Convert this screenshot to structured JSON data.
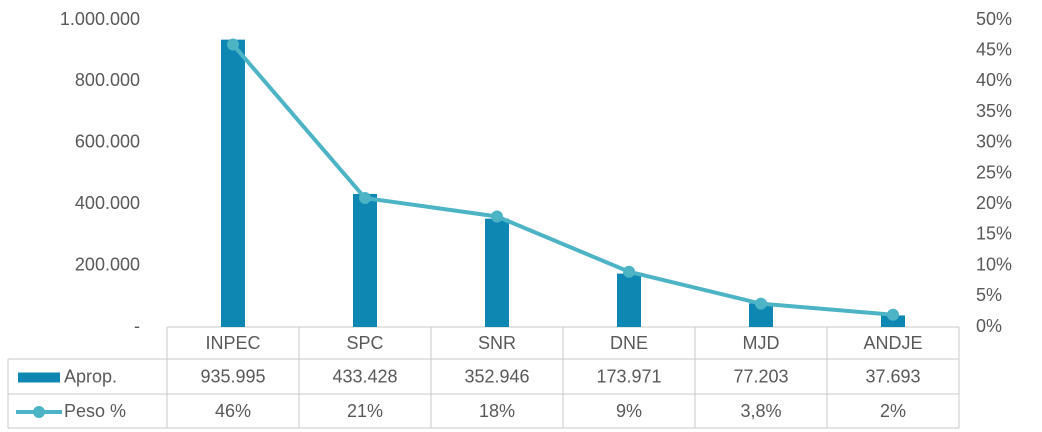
{
  "chart_data": {
    "type": "combo",
    "categories": [
      "INPEC",
      "SPC",
      "SNR",
      "DNE",
      "MJD",
      "ANDJE"
    ],
    "series": [
      {
        "name": "Aprop.",
        "type": "bar",
        "color": "#0f87b3",
        "values": [
          935995,
          433428,
          352946,
          173971,
          77203,
          37693
        ],
        "value_labels": [
          "935.995",
          "433.428",
          "352.946",
          "173.971",
          "77.203",
          "37.693"
        ]
      },
      {
        "name": "Peso %",
        "type": "line",
        "axis": "y2",
        "color": "#4db4c5",
        "values": [
          46,
          21,
          18,
          9,
          3.8,
          2
        ],
        "value_labels": [
          "46%",
          "21%",
          "18%",
          "9%",
          "3,8%",
          "2%"
        ]
      }
    ],
    "ylim": [
      0,
      1000000
    ],
    "yticks": [
      {
        "value": 0,
        "label": "-"
      },
      {
        "value": 200000,
        "label": "200.000"
      },
      {
        "value": 400000,
        "label": "400.000"
      },
      {
        "value": 600000,
        "label": "600.000"
      },
      {
        "value": 800000,
        "label": "800.000"
      },
      {
        "value": 1000000,
        "label": "1.000.000"
      }
    ],
    "y2lim": [
      0,
      50
    ],
    "y2ticks": [
      {
        "value": 0,
        "label": "0%"
      },
      {
        "value": 5,
        "label": "5%"
      },
      {
        "value": 10,
        "label": "10%"
      },
      {
        "value": 15,
        "label": "15%"
      },
      {
        "value": 20,
        "label": "20%"
      },
      {
        "value": 25,
        "label": "25%"
      },
      {
        "value": 30,
        "label": "30%"
      },
      {
        "value": 35,
        "label": "35%"
      },
      {
        "value": 40,
        "label": "40%"
      },
      {
        "value": 45,
        "label": "45%"
      },
      {
        "value": 50,
        "label": "50%"
      }
    ],
    "grid": false
  }
}
